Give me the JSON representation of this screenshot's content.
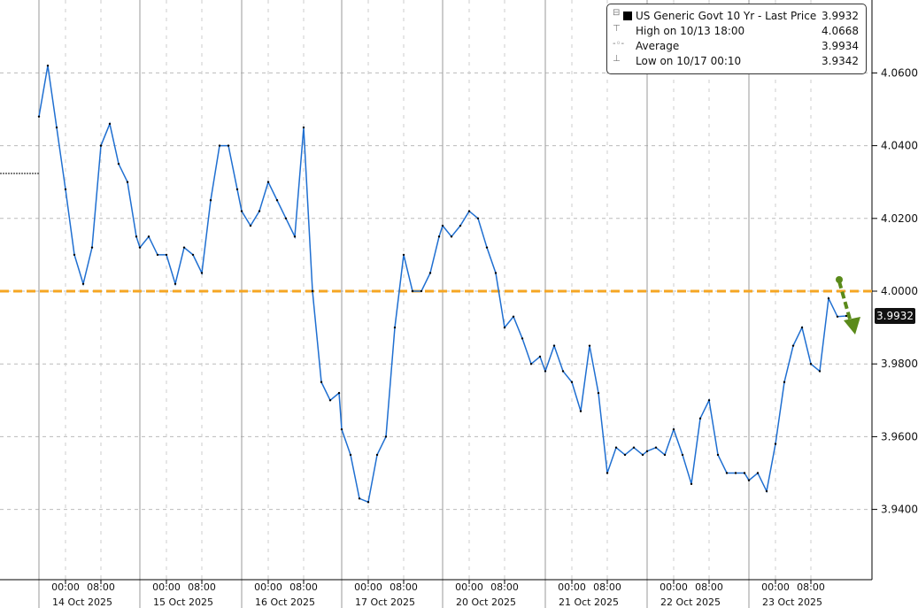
{
  "chart_data": {
    "type": "line",
    "title": "",
    "xlabel": "",
    "ylabel": "",
    "ylim": [
      3.92,
      4.074
    ],
    "y_ticks": [
      "4.0600",
      "4.0400",
      "4.0200",
      "4.0000",
      "3.9800",
      "3.9600",
      "3.9400"
    ],
    "x_tick_times": [
      "00:00",
      "08:00"
    ],
    "session_hours": [
      "18:00",
      "20:00",
      "22:00",
      "00:00",
      "02:00",
      "04:00",
      "06:00",
      "08:00",
      "10:00",
      "12:00",
      "14:00",
      "16:00"
    ],
    "sessions": [
      {
        "date": "14 Oct 2025",
        "values": [
          4.048,
          4.062,
          4.045,
          4.028,
          4.01,
          4.002,
          4.012,
          4.04,
          4.046,
          4.035,
          4.03,
          4.015
        ]
      },
      {
        "date": "15 Oct 2025",
        "values": [
          4.012,
          4.015,
          4.01,
          4.01,
          4.002,
          4.012,
          4.01,
          4.005,
          4.025,
          4.04,
          4.04,
          4.028
        ]
      },
      {
        "date": "16 Oct 2025",
        "values": [
          4.022,
          4.018,
          4.022,
          4.03,
          4.025,
          4.02,
          4.015,
          4.045,
          4.0,
          3.975,
          3.97,
          3.972
        ]
      },
      {
        "date": "17 Oct 2025",
        "values": [
          3.962,
          3.955,
          3.943,
          3.942,
          3.955,
          3.96,
          3.99,
          4.01,
          4.0,
          4.0,
          4.005,
          4.015
        ]
      },
      {
        "date": "20 Oct 2025",
        "values": [
          4.018,
          4.015,
          4.018,
          4.022,
          4.02,
          4.012,
          4.005,
          3.99,
          3.993,
          3.987,
          3.98,
          3.982
        ]
      },
      {
        "date": "21 Oct 2025",
        "values": [
          3.978,
          3.985,
          3.978,
          3.975,
          3.967,
          3.985,
          3.972,
          3.95,
          3.957,
          3.955,
          3.957,
          3.955
        ]
      },
      {
        "date": "22 Oct 2025",
        "values": [
          3.956,
          3.957,
          3.955,
          3.962,
          3.955,
          3.947,
          3.965,
          3.97,
          3.955,
          3.95,
          3.95,
          3.95
        ]
      },
      {
        "date": "23 Oct 2025",
        "values": [
          3.948,
          3.95,
          3.945,
          3.958,
          3.975,
          3.985,
          3.99,
          3.98,
          3.978,
          3.998,
          3.993,
          3.9932
        ]
      }
    ],
    "reference_line": {
      "value": 4.0,
      "color": "#f5a623",
      "style": "dashed"
    },
    "annotation_arrow": {
      "color": "#5a8a1a",
      "direction": "down"
    },
    "series_color": "#1f6fd1",
    "grid": true,
    "legend_position": "top-right",
    "legend": {
      "title": "US Generic Govt 10 Yr - Last Price",
      "last": "3.9932",
      "high_label": "High on 10/13 18:00",
      "high": "4.0668",
      "average_label": "Average",
      "average": "3.9934",
      "low_label": "Low on 10/17 00:10",
      "low": "3.9342"
    },
    "last_price_label": "3.9932"
  }
}
